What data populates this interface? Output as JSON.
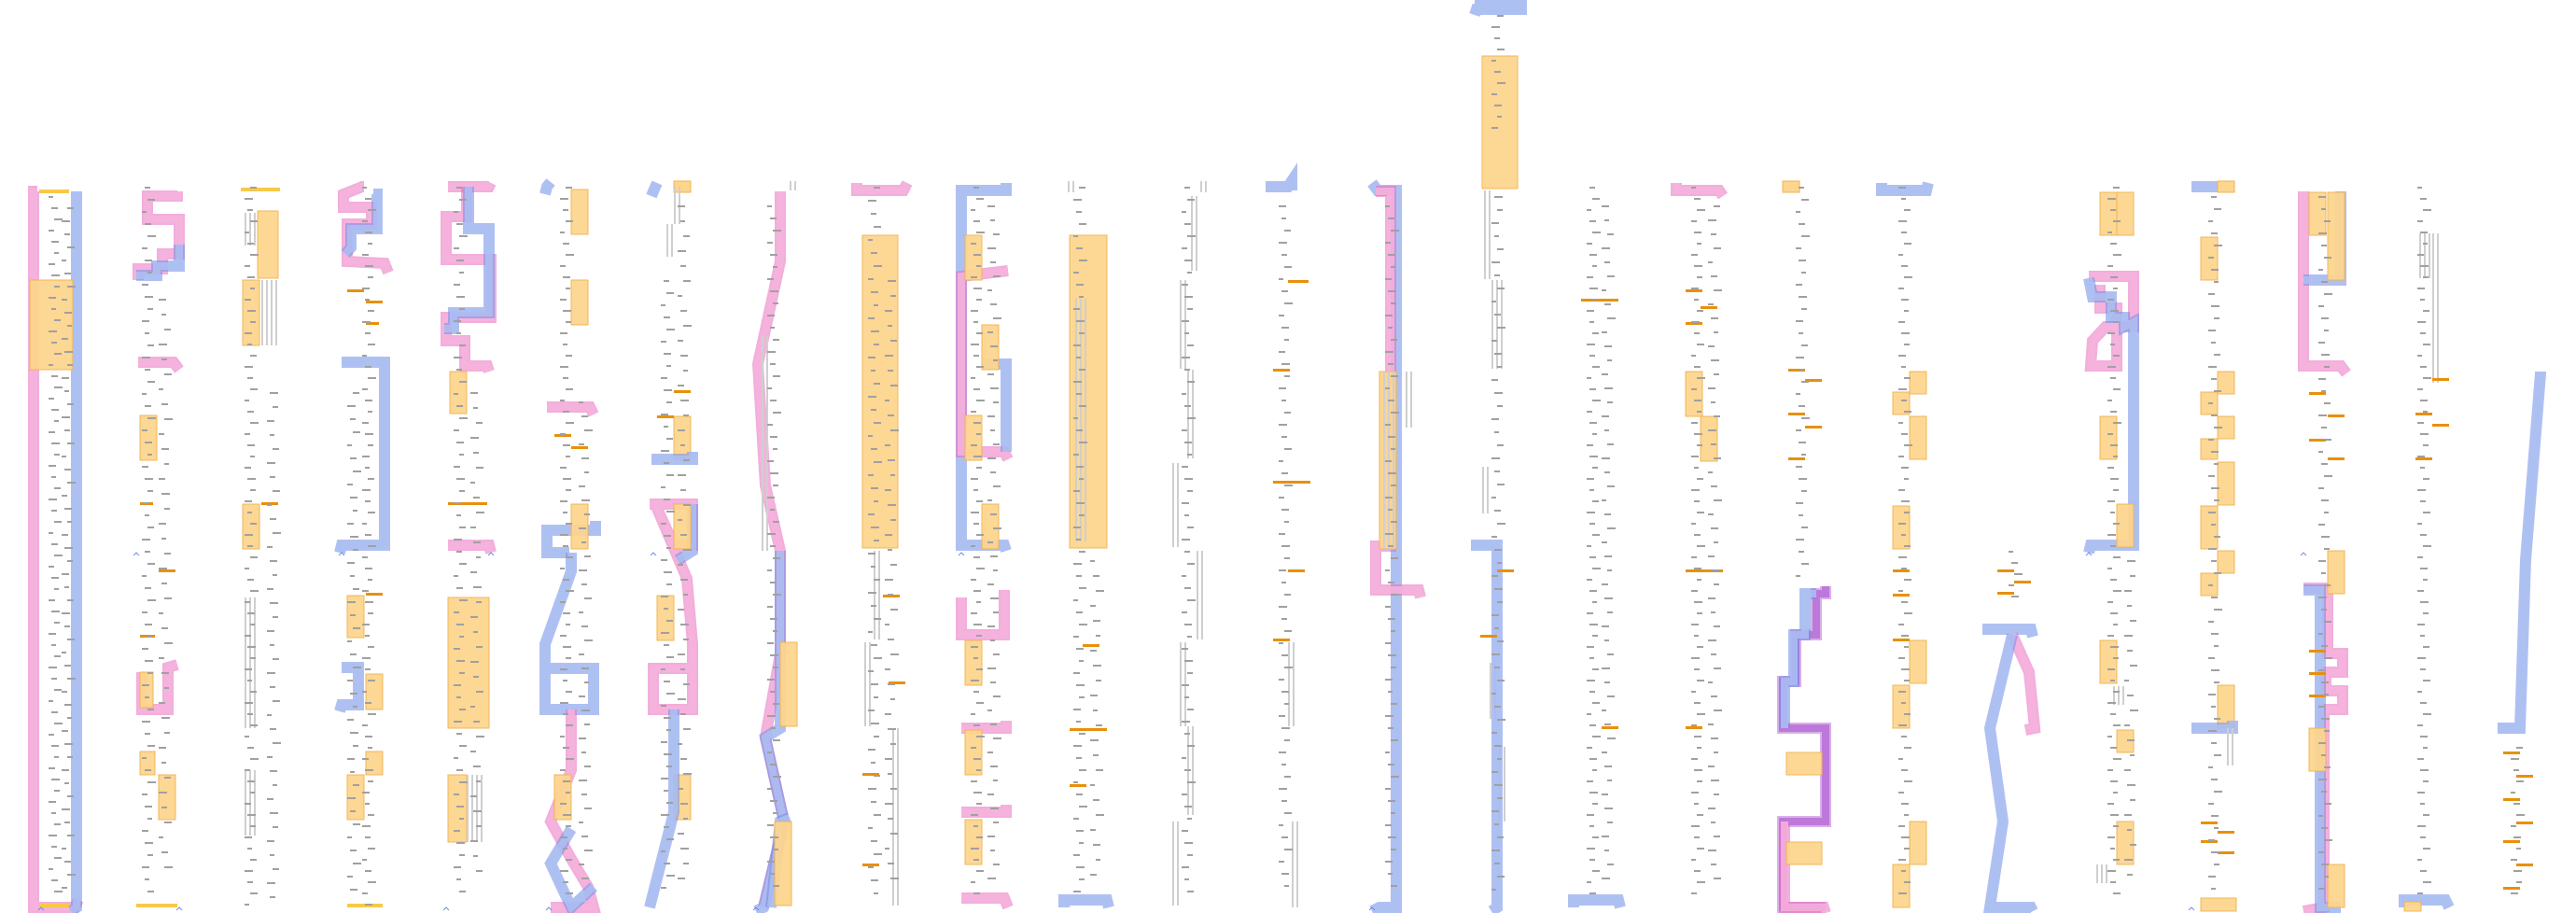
{
  "figure": {
    "description_free": true,
    "colors": {
      "background": "#ffffff",
      "blue_fill": "#adbff2",
      "blue_stroke": "#6f8de8",
      "pink_fill": "#f6b3dc",
      "pink_stroke": "#e86bbf",
      "purple": "#b86fd6",
      "orange_fill": "#fdd58f",
      "orange_stroke": "#f0b450",
      "orange_dash": "#e8900c",
      "gray_bar": "#cfcfcf",
      "gray_text": "#a0a0a0",
      "yellow_mark": "#f7c948"
    },
    "column_count": 25
  }
}
